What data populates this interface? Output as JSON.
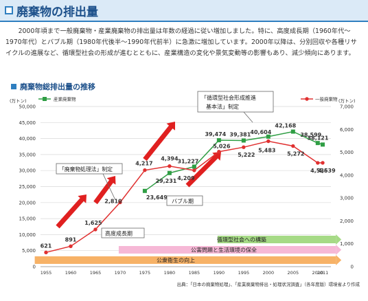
{
  "page": {
    "title": "廃棄物の排出量",
    "intro": "2000年頃まで一般廃棄物・産業廃棄物の排出量は年数の経過に従い増加しました。特に、高度成長期（1960年代〜1970年代）とバブル期（1980年代後半〜1990年代前半）に急激に増加しています。2000年以降は、分別回収や各種リサイクルの進展など、循環型社会の形成が進むとともに、産業構造の変化や景気変動等の影響もあり、減少傾向にあります。",
    "section_title": "廃棄物総排出量の推移",
    "source": "出典：「日本の廃棄物処理」、「産業廃棄物排出・処理状況調査」（各年度版）環境省より作成"
  },
  "colors": {
    "industrial": "#2f9e44",
    "municipal": "#e03030",
    "arrow": "#e02020",
    "band_orange": "#f7b267",
    "band_pink": "#f6b8d6",
    "band_green": "#a6da86",
    "accent": "#2f7fc0"
  },
  "chart_data": {
    "type": "line",
    "x": [
      1955,
      1960,
      1965,
      1970,
      1975,
      1980,
      1985,
      1990,
      1995,
      2000,
      2005,
      2010,
      2011
    ],
    "left_axis": {
      "unit": "(万トン)",
      "ylim": [
        0,
        50000
      ],
      "ticks": [
        "0",
        "5,000",
        "10,000",
        "15,000",
        "20,000",
        "25,000",
        "30,000",
        "35,000",
        "40,000",
        "45,000",
        "50,000"
      ]
    },
    "right_axis": {
      "unit": "(万トン)",
      "ylim": [
        0,
        7000
      ],
      "ticks": [
        "0",
        "1,000",
        "2,000",
        "3,000",
        "4,000",
        "5,000",
        "6,000",
        "7,000"
      ]
    },
    "series": [
      {
        "name": "産業廃棄物",
        "axis": "left",
        "x": [
          1975,
          1980,
          1985,
          1990,
          1995,
          2000,
          2005,
          2010,
          2011
        ],
        "values": [
          23649,
          29231,
          31227,
          39474,
          39381,
          40604,
          42168,
          38599,
          38121
        ],
        "labels": [
          "23,649",
          "29,231",
          "31,227",
          "39,474",
          "39,381",
          "40,604",
          "42,168",
          "38,599",
          "38,121"
        ]
      },
      {
        "name": "一般廃棄物",
        "axis": "right",
        "x": [
          1955,
          1960,
          1965,
          1970,
          1975,
          1980,
          1985,
          1990,
          1995,
          2000,
          2005,
          2010,
          2011
        ],
        "values": [
          621,
          891,
          1625,
          2810,
          4217,
          4394,
          4209,
          5026,
          5222,
          5483,
          5272,
          4536,
          4539
        ],
        "labels": [
          "621",
          "891",
          "1,625",
          "2,810",
          "4,217",
          "4,394",
          "4,209",
          "5,026",
          "5,222",
          "5,483",
          "5,272",
          "4,536",
          "4,539"
        ]
      }
    ],
    "annotations": {
      "law_1970": "「廃棄物処理法」制定",
      "law_2000": "「循環型社会形成推進\n基本法」制定",
      "high_growth": "高度成長期",
      "bubble": "バブル期"
    },
    "bands": [
      {
        "label": "循環型社会への構築",
        "start": 1990,
        "end": 2012
      },
      {
        "label": "公害問題と生活環境の保全",
        "start": 1970,
        "end": 2012
      },
      {
        "label": "公衆衛生の向上",
        "start": 1953,
        "end": 2012
      }
    ]
  }
}
